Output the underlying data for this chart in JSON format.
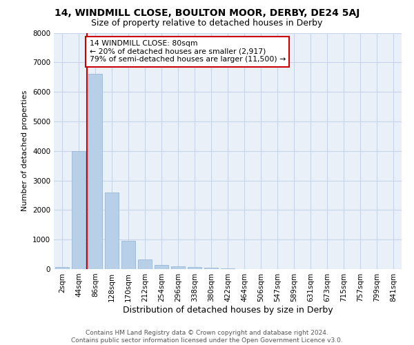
{
  "title_line1": "14, WINDMILL CLOSE, BOULTON MOOR, DERBY, DE24 5AJ",
  "title_line2": "Size of property relative to detached houses in Derby",
  "xlabel": "Distribution of detached houses by size in Derby",
  "ylabel": "Number of detached properties",
  "categories": [
    "2sqm",
    "44sqm",
    "86sqm",
    "128sqm",
    "170sqm",
    "212sqm",
    "254sqm",
    "296sqm",
    "338sqm",
    "380sqm",
    "422sqm",
    "464sqm",
    "506sqm",
    "547sqm",
    "589sqm",
    "631sqm",
    "673sqm",
    "715sqm",
    "757sqm",
    "799sqm",
    "841sqm"
  ],
  "values": [
    75,
    4000,
    6600,
    2600,
    950,
    320,
    140,
    90,
    65,
    50,
    20,
    10,
    5,
    3,
    2,
    1,
    1,
    1,
    0,
    0,
    0
  ],
  "bar_color": "#b8cfe8",
  "bar_edge_color": "#9ab8d8",
  "vline_color": "#cc0000",
  "vline_x_index": 1.5,
  "annotation_line1": "14 WINDMILL CLOSE: 80sqm",
  "annotation_line2": "← 20% of detached houses are smaller (2,917)",
  "annotation_line3": "79% of semi-detached houses are larger (11,500) →",
  "annotation_box_color": "#ffffff",
  "annotation_box_edge_color": "#cc0000",
  "ylim": [
    0,
    8000
  ],
  "yticks": [
    0,
    1000,
    2000,
    3000,
    4000,
    5000,
    6000,
    7000,
    8000
  ],
  "grid_color": "#c8d4e8",
  "background_color": "#eaf0f8",
  "title1_fontsize": 10,
  "title2_fontsize": 9,
  "xlabel_fontsize": 9,
  "ylabel_fontsize": 8,
  "tick_fontsize": 7.5,
  "footer_line1": "Contains HM Land Registry data © Crown copyright and database right 2024.",
  "footer_line2": "Contains public sector information licensed under the Open Government Licence v3.0."
}
